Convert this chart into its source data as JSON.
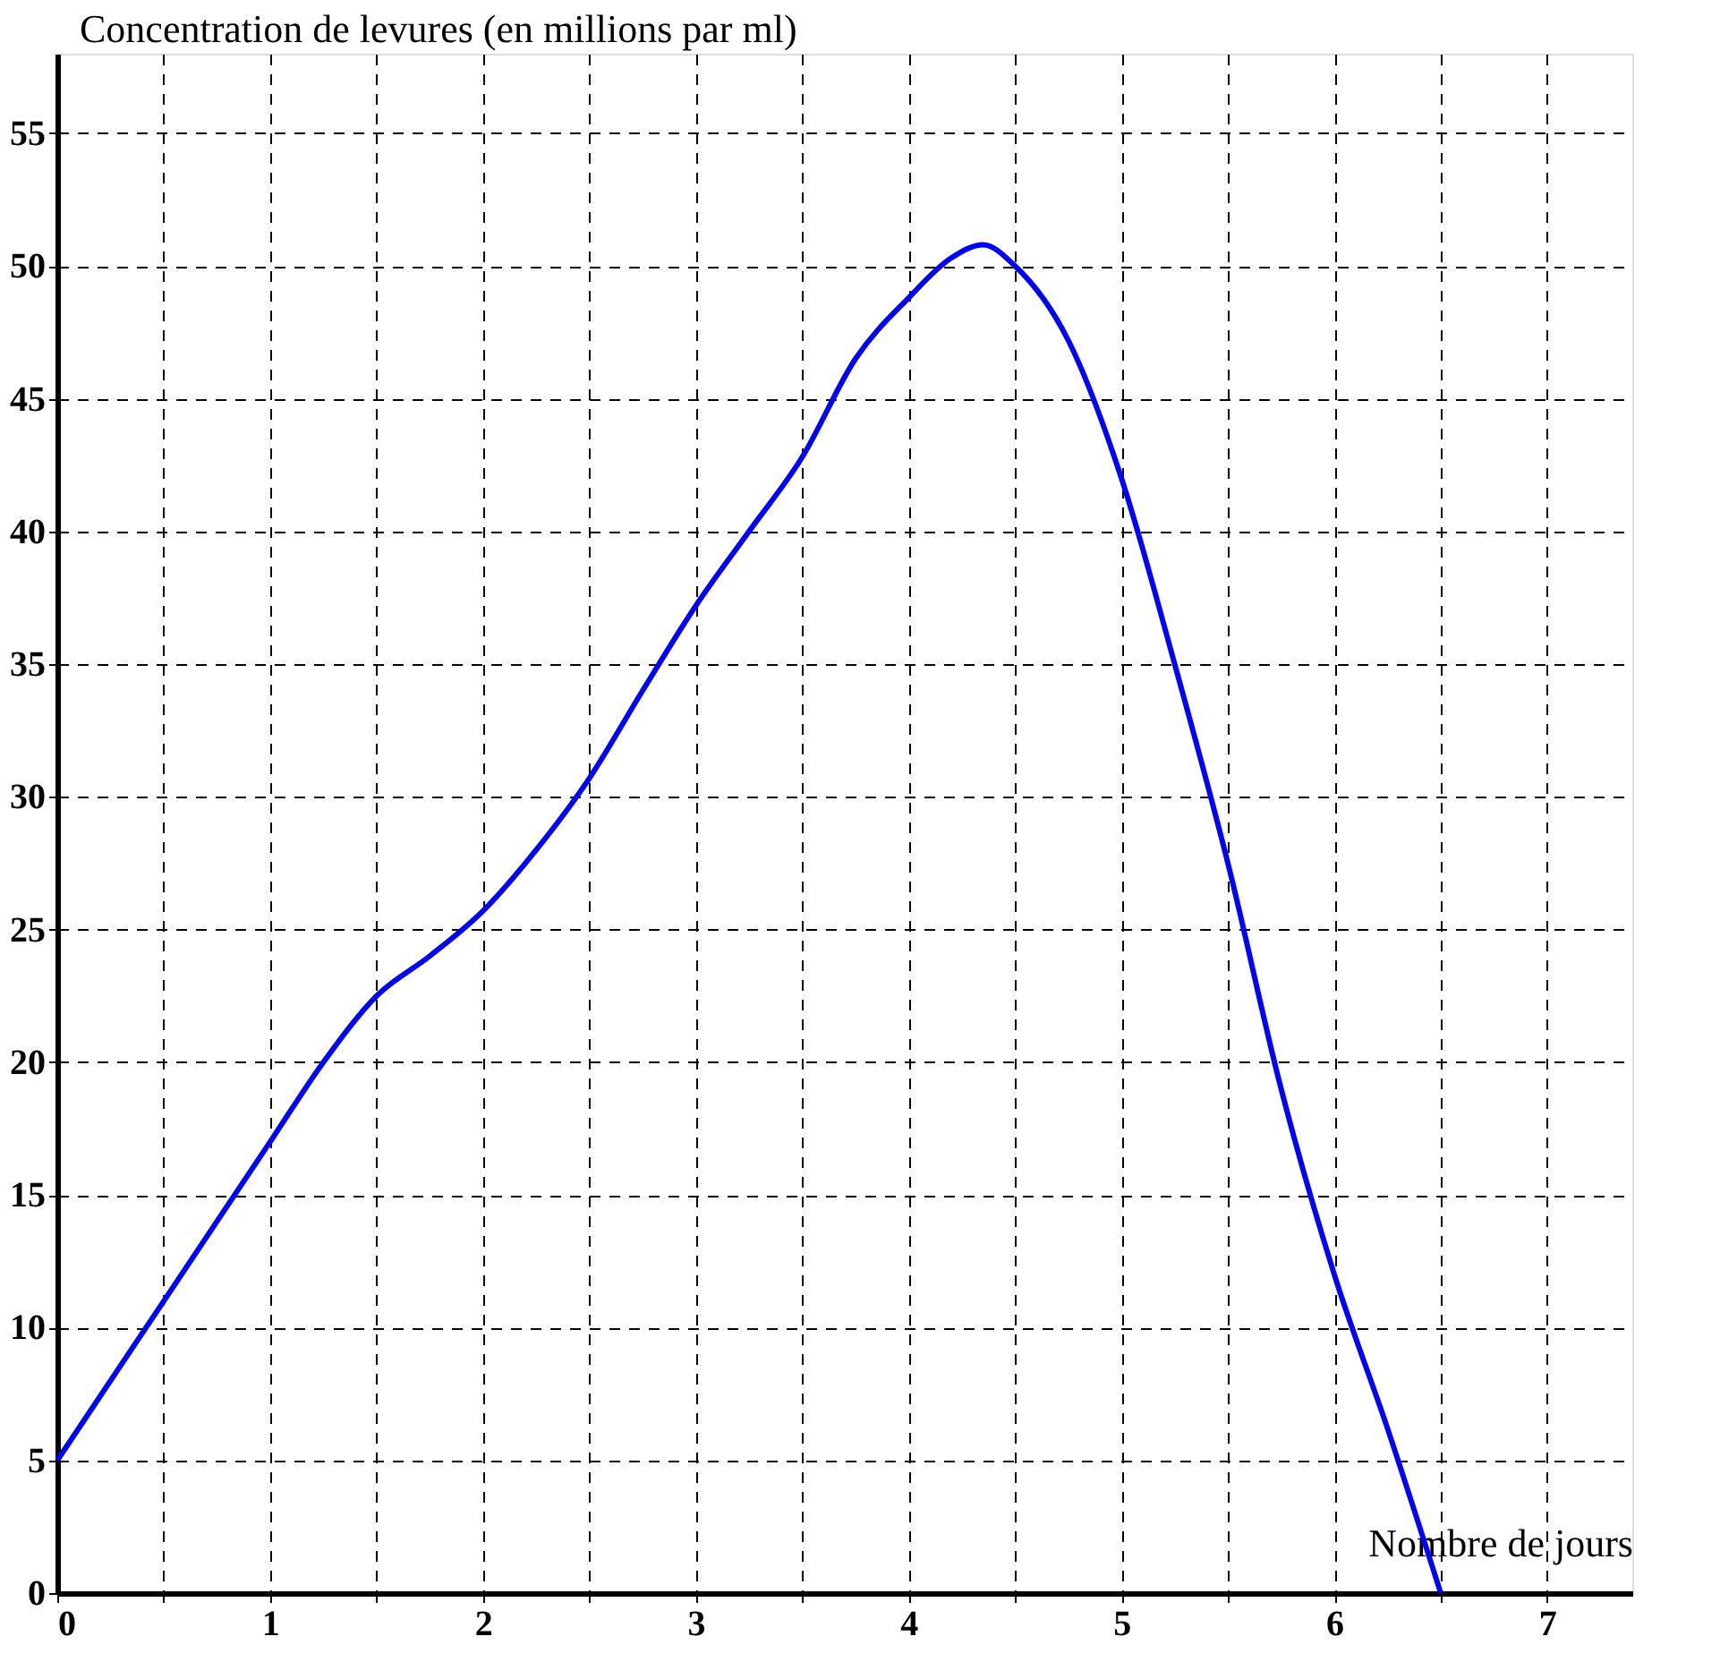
{
  "chart_data": {
    "type": "line",
    "xlabel": "Nombre de jours",
    "ylabel": "Concentration de levures (en millions par ml)",
    "x": [
      0,
      0.5,
      1,
      1.25,
      1.5,
      1.75,
      2,
      2.25,
      2.5,
      2.75,
      3,
      3.25,
      3.5,
      3.75,
      4,
      4.2,
      4.35,
      4.5,
      4.75,
      5,
      5.25,
      5.5,
      5.75,
      6,
      6.25,
      6.5
    ],
    "series": [
      {
        "color": "#0000ff",
        "values": [
          5,
          11,
          17,
          20,
          22.5,
          24,
          25.7,
          28,
          30.7,
          34,
          37.2,
          40,
          42.8,
          46.5,
          48.8,
          50.3,
          50.8,
          50,
          47.2,
          42,
          35,
          27.5,
          19,
          12,
          6.2,
          0
        ]
      }
    ],
    "xlim": [
      0,
      7.4
    ],
    "ylim": [
      0,
      58
    ],
    "xticks": [
      0,
      {
        "value": 0.5,
        "label": null
      },
      1,
      {
        "value": 1.5,
        "label": null
      },
      2,
      {
        "value": 2.5,
        "label": null
      },
      3,
      {
        "value": 3.5,
        "label": null
      },
      4,
      {
        "value": 4.5,
        "label": null
      },
      5,
      {
        "value": 5.5,
        "label": null
      },
      6,
      {
        "value": 6.5,
        "label": null
      },
      7
    ],
    "yticks": [
      0,
      5,
      10,
      15,
      20,
      25,
      30,
      35,
      40,
      45,
      50,
      55
    ],
    "grid": true,
    "marker": "none",
    "line_style": "solid"
  }
}
